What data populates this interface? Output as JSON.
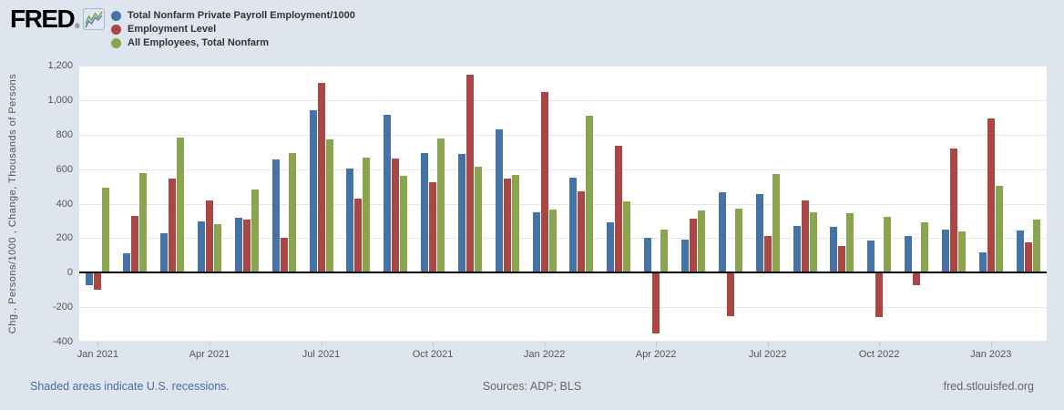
{
  "header": {
    "logo_text": "FRED",
    "registered_mark": "®"
  },
  "legend": {
    "items": [
      {
        "label": "Total Nonfarm Private Payroll Employment/1000",
        "color": "#4572a7"
      },
      {
        "label": "Employment Level",
        "color": "#aa4643"
      },
      {
        "label": "All Employees, Total Nonfarm",
        "color": "#89a54e"
      }
    ]
  },
  "y_axis": {
    "title": "Chg., Persons/1000 , Change, Thousands of Persons",
    "tick_values": [
      1200,
      1000,
      800,
      600,
      400,
      200,
      0,
      -200,
      -400
    ],
    "tick_labels": [
      "1,200",
      "1,000",
      "800",
      "600",
      "400",
      "200",
      "0",
      "-200",
      "-400"
    ]
  },
  "x_axis": {
    "tick_indices": [
      0,
      3,
      6,
      9,
      12,
      15,
      18,
      21,
      24
    ],
    "tick_labels": [
      "Jan 2021",
      "Apr 2021",
      "Jul 2021",
      "Oct 2021",
      "Jan 2022",
      "Apr 2022",
      "Jul 2022",
      "Oct 2022",
      "Jan 2023"
    ]
  },
  "chart_data": {
    "type": "bar",
    "title": "",
    "xlabel": "",
    "ylabel": "Chg., Persons/1000 , Change, Thousands of Persons",
    "ylim": [
      -400,
      1200
    ],
    "grid": true,
    "legend_position": "top-left",
    "categories": [
      "Jan 2021",
      "Feb 2021",
      "Mar 2021",
      "Apr 2021",
      "May 2021",
      "Jun 2021",
      "Jul 2021",
      "Aug 2021",
      "Sep 2021",
      "Oct 2021",
      "Nov 2021",
      "Dec 2021",
      "Jan 2022",
      "Feb 2022",
      "Mar 2022",
      "Apr 2022",
      "May 2022",
      "Jun 2022",
      "Jul 2022",
      "Aug 2022",
      "Sep 2022",
      "Oct 2022",
      "Nov 2022",
      "Dec 2022",
      "Jan 2023",
      "Feb 2023"
    ],
    "series": [
      {
        "name": "Total Nonfarm Private Payroll Employment/1000",
        "color": "#4572a7",
        "values": [
          -70,
          110,
          230,
          295,
          320,
          655,
          940,
          605,
          915,
          695,
          690,
          830,
          350,
          550,
          290,
          200,
          190,
          465,
          455,
          270,
          265,
          185,
          210,
          250,
          120,
          245
        ]
      },
      {
        "name": "Employment Level",
        "color": "#aa4643",
        "values": [
          -100,
          330,
          545,
          420,
          310,
          200,
          1100,
          430,
          660,
          525,
          1145,
          545,
          1045,
          470,
          735,
          -355,
          315,
          -250,
          215,
          420,
          155,
          -260,
          -70,
          720,
          895,
          175
        ]
      },
      {
        "name": "All Employees, Total Nonfarm",
        "color": "#89a54e",
        "values": [
          490,
          575,
          785,
          280,
          480,
          695,
          770,
          665,
          560,
          780,
          615,
          565,
          365,
          910,
          415,
          250,
          360,
          370,
          570,
          350,
          345,
          325,
          290,
          240,
          505,
          310
        ]
      }
    ]
  },
  "footer": {
    "recession_note": "Shaded areas indicate U.S. recessions.",
    "sources": "Sources: ADP; BLS",
    "site": "fred.stlouisfed.org"
  },
  "colors": {
    "background": "#dee5ee",
    "plot_background": "#ffffff",
    "gridline": "#e6e6e6",
    "zero_line": "#000000",
    "axis_text": "#555555",
    "legend_text": "#333333",
    "footer_link": "#4a6b9b",
    "footer_text": "#666666"
  }
}
